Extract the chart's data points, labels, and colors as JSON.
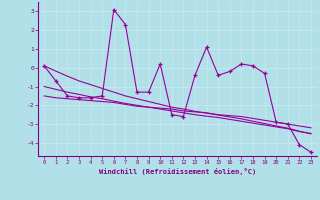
{
  "xlabel": "Windchill (Refroidissement éolien,°C)",
  "x": [
    0,
    1,
    2,
    3,
    4,
    5,
    6,
    7,
    8,
    9,
    10,
    11,
    12,
    13,
    14,
    15,
    16,
    17,
    18,
    19,
    20,
    21,
    22,
    23
  ],
  "y_main": [
    0.1,
    -0.7,
    -1.5,
    -1.6,
    -1.6,
    -1.5,
    3.1,
    2.3,
    -1.3,
    -1.3,
    0.2,
    -2.5,
    -2.6,
    -0.4,
    1.1,
    -0.4,
    -0.2,
    0.2,
    0.1,
    -0.3,
    -2.9,
    -3.0,
    -4.1,
    -4.5
  ],
  "y_line1": [
    -1.5,
    -1.6,
    -1.65,
    -1.7,
    -1.75,
    -1.8,
    -1.85,
    -1.95,
    -2.05,
    -2.1,
    -2.15,
    -2.2,
    -2.3,
    -2.35,
    -2.4,
    -2.5,
    -2.55,
    -2.6,
    -2.7,
    -2.8,
    -2.9,
    -3.0,
    -3.1,
    -3.2
  ],
  "y_line2": [
    -1.0,
    -1.15,
    -1.3,
    -1.42,
    -1.55,
    -1.65,
    -1.78,
    -1.9,
    -2.0,
    -2.1,
    -2.2,
    -2.3,
    -2.4,
    -2.5,
    -2.58,
    -2.65,
    -2.75,
    -2.85,
    -2.95,
    -3.05,
    -3.15,
    -3.25,
    -3.4,
    -3.5
  ],
  "y_line3": [
    0.1,
    -0.18,
    -0.45,
    -0.7,
    -0.9,
    -1.1,
    -1.3,
    -1.5,
    -1.65,
    -1.8,
    -1.95,
    -2.1,
    -2.2,
    -2.32,
    -2.42,
    -2.52,
    -2.62,
    -2.72,
    -2.85,
    -2.97,
    -3.1,
    -3.22,
    -3.38,
    -3.52
  ],
  "line_color": "#990099",
  "bg_color": "#b2e0e8",
  "grid_color": "#c8e8f0",
  "ylim": [
    -4.7,
    3.5
  ],
  "xlim": [
    -0.5,
    23.5
  ],
  "yticks": [
    -4,
    -3,
    -2,
    -1,
    0,
    1,
    2,
    3
  ],
  "xticks": [
    0,
    1,
    2,
    3,
    4,
    5,
    6,
    7,
    8,
    9,
    10,
    11,
    12,
    13,
    14,
    15,
    16,
    17,
    18,
    19,
    20,
    21,
    22,
    23
  ]
}
